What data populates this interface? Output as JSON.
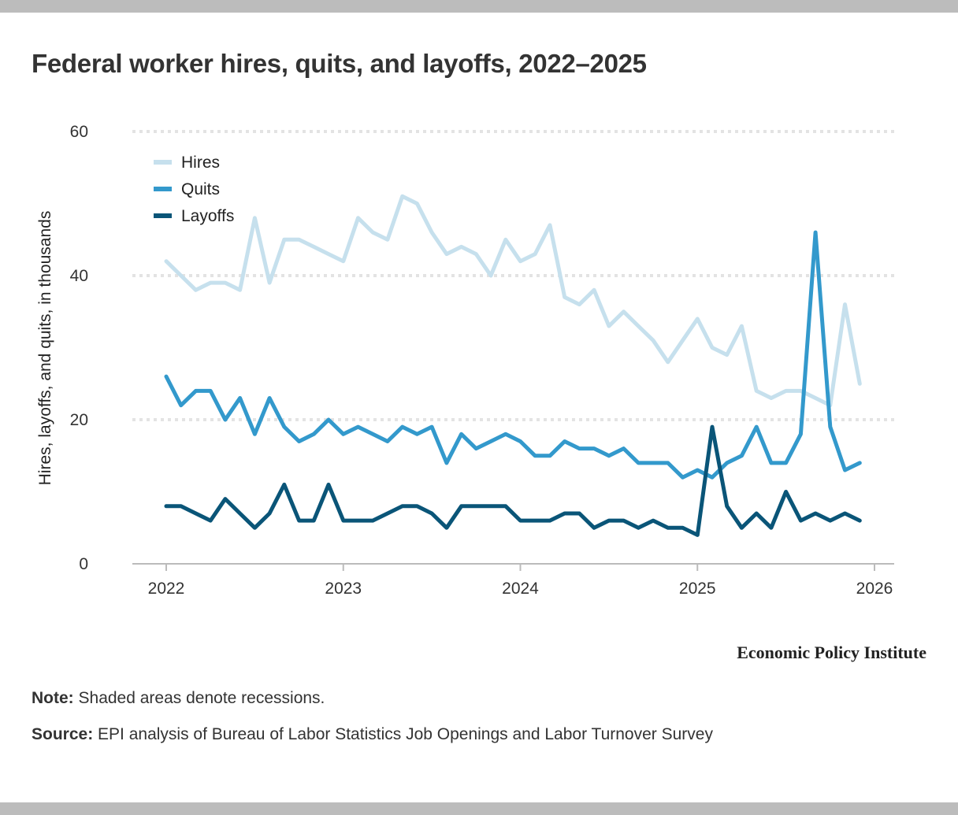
{
  "title": "Federal worker hires, quits, and layoffs, 2022–2025",
  "logo": "Economic Policy Institute",
  "note": {
    "label": "Note:",
    "text": "Shaded areas denote recessions."
  },
  "source": {
    "label": "Source:",
    "text": "EPI analysis of Bureau of Labor Statistics Job Openings and Labor Turnover Survey"
  },
  "chart_data": {
    "type": "line",
    "title": "Federal worker hires, quits, and layoffs, 2022–2025",
    "xlabel": "",
    "ylabel": "Hires, layoffs, and quits, in thousands",
    "ylim": [
      0,
      60
    ],
    "yticks": [
      "0",
      "20",
      "40",
      "60"
    ],
    "xlim": [
      "2022-01",
      "2026-01"
    ],
    "xticks": [
      "2022",
      "2023",
      "2024",
      "2025",
      "2026"
    ],
    "grid": "horizontal dotted",
    "legend": "top-left",
    "x": [
      "2022-01",
      "2022-02",
      "2022-03",
      "2022-04",
      "2022-05",
      "2022-06",
      "2022-07",
      "2022-08",
      "2022-09",
      "2022-10",
      "2022-11",
      "2022-12",
      "2023-01",
      "2023-02",
      "2023-03",
      "2023-04",
      "2023-05",
      "2023-06",
      "2023-07",
      "2023-08",
      "2023-09",
      "2023-10",
      "2023-11",
      "2023-12",
      "2024-01",
      "2024-02",
      "2024-03",
      "2024-04",
      "2024-05",
      "2024-06",
      "2024-07",
      "2024-08",
      "2024-09",
      "2024-10",
      "2024-11",
      "2024-12",
      "2025-01",
      "2025-02",
      "2025-03",
      "2025-04",
      "2025-05",
      "2025-06",
      "2025-07",
      "2025-08",
      "2025-09",
      "2025-10",
      "2025-11",
      "2025-12"
    ],
    "series": [
      {
        "name": "Hires",
        "color": "#c6e0ed",
        "values": [
          42,
          40,
          38,
          39,
          39,
          38,
          48,
          39,
          45,
          45,
          44,
          43,
          42,
          48,
          46,
          45,
          51,
          50,
          46,
          43,
          44,
          43,
          40,
          45,
          42,
          43,
          47,
          37,
          36,
          38,
          33,
          35,
          33,
          31,
          28,
          31,
          34,
          30,
          29,
          33,
          24,
          23,
          24,
          24,
          23,
          22,
          36,
          25
        ]
      },
      {
        "name": "Quits",
        "color": "#3399cc",
        "values": [
          26,
          22,
          24,
          24,
          20,
          23,
          18,
          23,
          19,
          17,
          18,
          20,
          18,
          19,
          18,
          17,
          19,
          18,
          19,
          14,
          18,
          16,
          17,
          18,
          17,
          15,
          15,
          17,
          16,
          16,
          15,
          16,
          14,
          14,
          14,
          12,
          13,
          12,
          14,
          15,
          19,
          14,
          14,
          18,
          46,
          19,
          13,
          14
        ]
      },
      {
        "name": "Layoffs",
        "color": "#0a5578",
        "values": [
          8,
          8,
          7,
          6,
          9,
          7,
          5,
          7,
          11,
          6,
          6,
          11,
          6,
          6,
          6,
          7,
          8,
          8,
          7,
          5,
          8,
          8,
          8,
          8,
          6,
          6,
          6,
          7,
          7,
          5,
          6,
          6,
          5,
          6,
          5,
          5,
          4,
          19,
          8,
          5,
          7,
          5,
          10,
          6,
          7,
          6,
          7,
          6
        ]
      }
    ]
  }
}
